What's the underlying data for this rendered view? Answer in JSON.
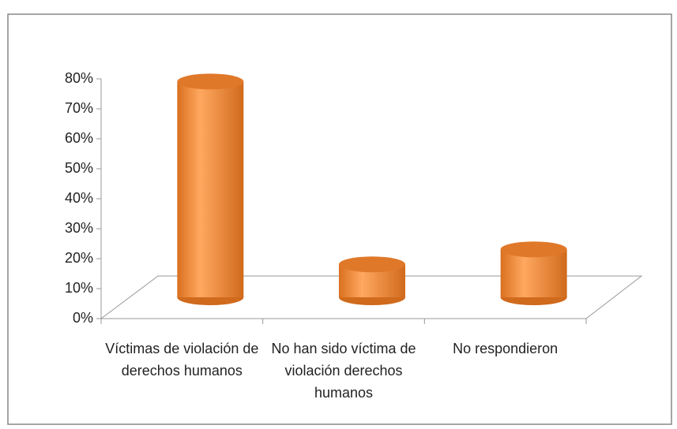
{
  "chart_data": {
    "type": "bar3d",
    "categories": [
      "Víctimas de violación de derechos humanos",
      "No han sido víctima de violación derechos humanos",
      "No respondieron"
    ],
    "values": [
      72,
      11,
      16
    ],
    "color": "#f79646",
    "ylim": [
      0,
      80
    ],
    "yticks": [
      {
        "value": 0,
        "label": "0%"
      },
      {
        "value": 10,
        "label": "10%"
      },
      {
        "value": 20,
        "label": "20%"
      },
      {
        "value": 30,
        "label": "30%"
      },
      {
        "value": 40,
        "label": "40%"
      },
      {
        "value": 50,
        "label": "50%"
      },
      {
        "value": 60,
        "label": "60%"
      },
      {
        "value": 70,
        "label": "70%"
      },
      {
        "value": 80,
        "label": "80%"
      }
    ]
  }
}
